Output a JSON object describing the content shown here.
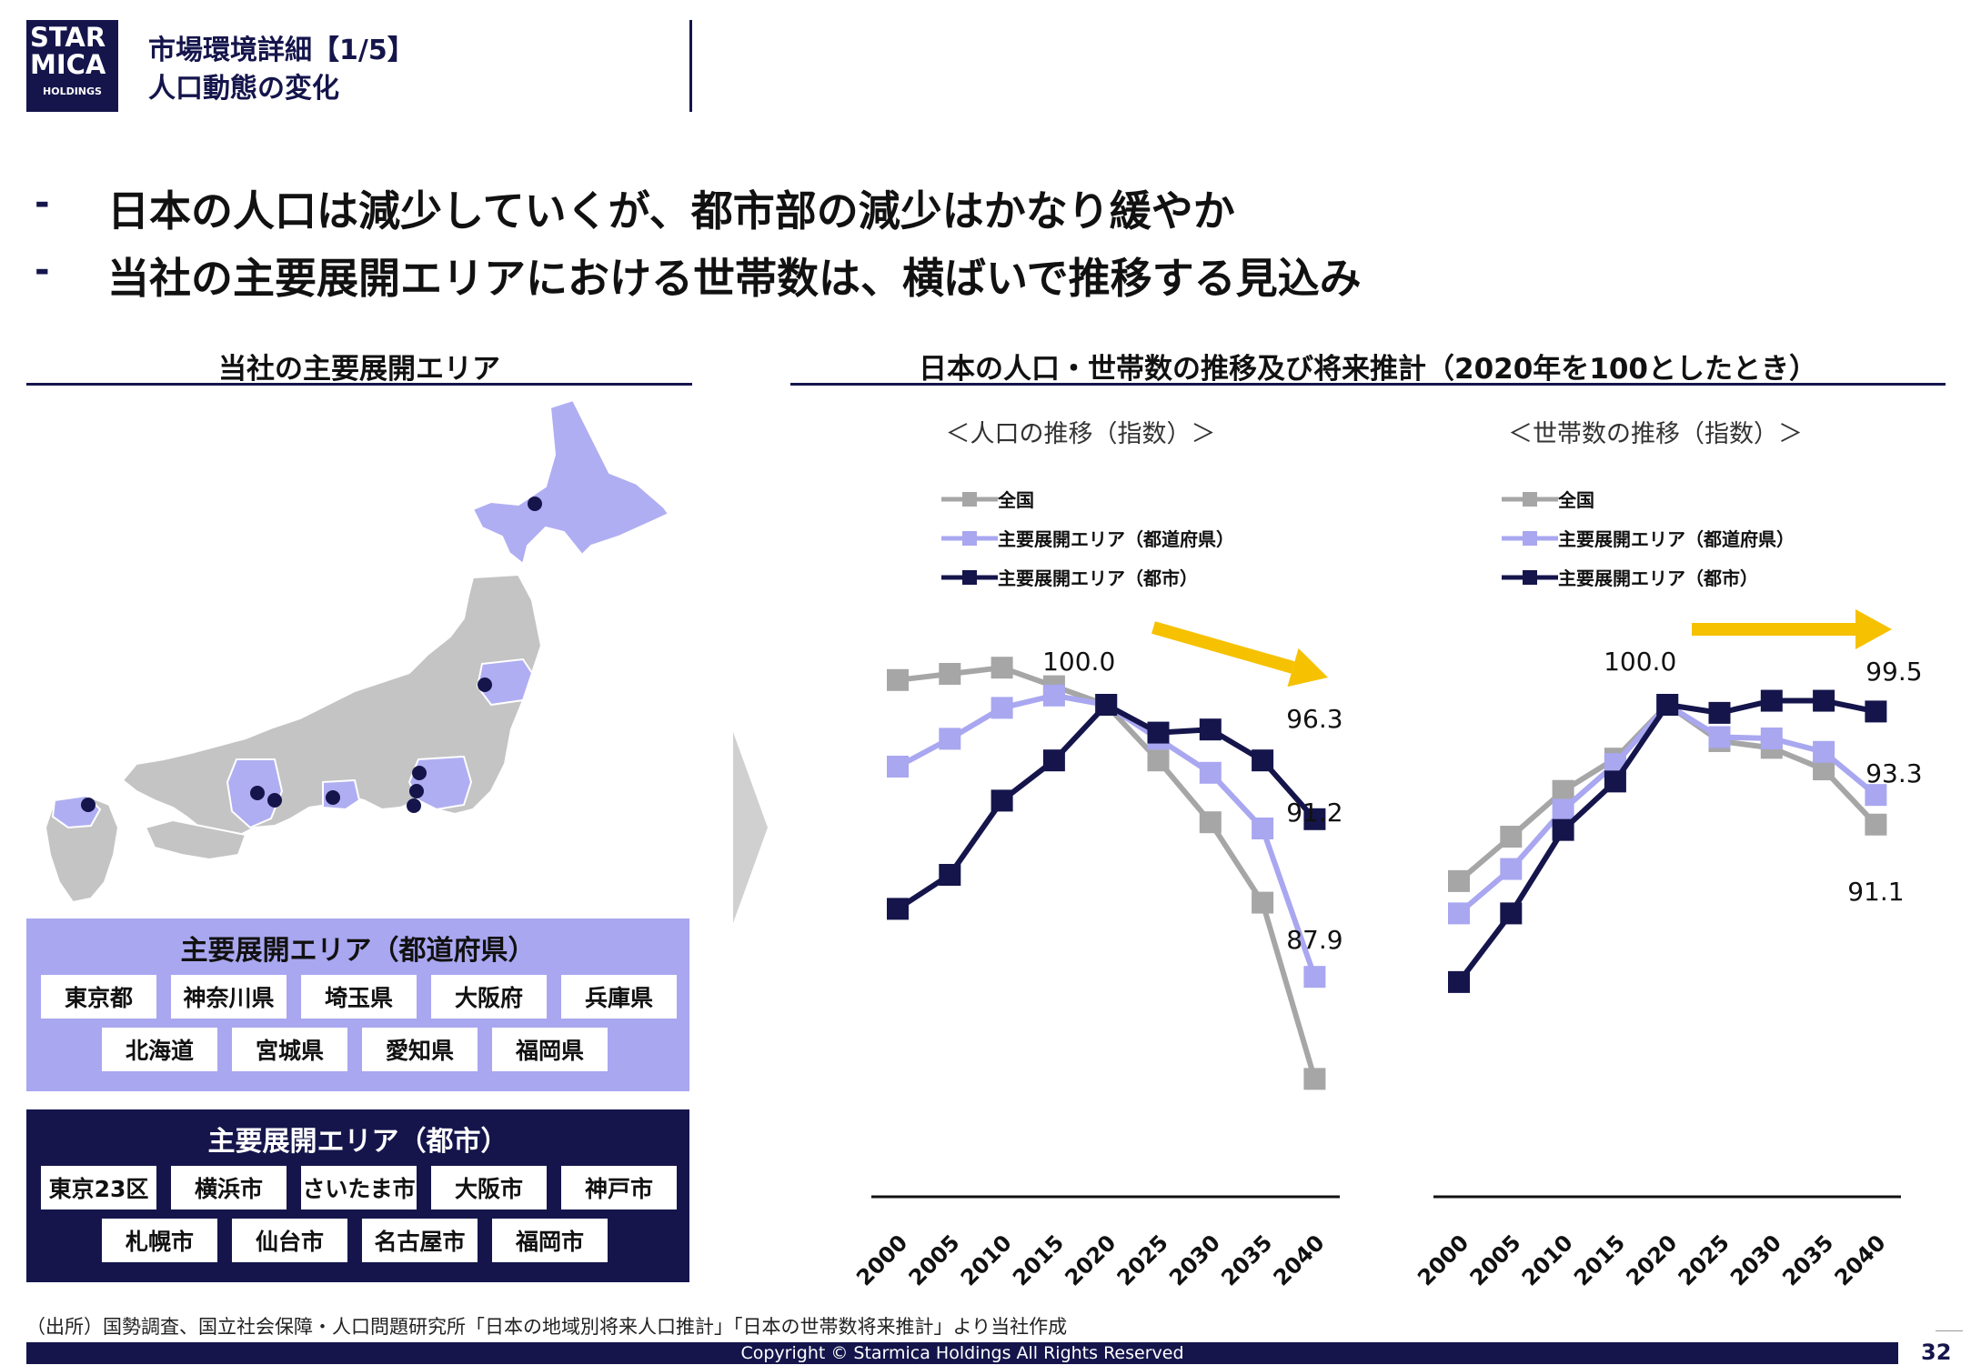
{
  "header": {
    "logo_line1": "STAR",
    "logo_line2": "MICA",
    "logo_line3": "HOLDINGS",
    "title": "市場環境詳細【1/5】",
    "subtitle": "人口動態の変化"
  },
  "bullets": [
    "日本の人口は減少していくが、都市部の減少はかなり緩やか",
    "当社の主要展開エリアにおける世帯数は、横ばいで推移する見込み"
  ],
  "bullet_marker": "-",
  "left_section": {
    "title": "当社の主要展開エリア",
    "prefecture_panel": {
      "title": "主要展開エリア（都道府県）",
      "items": [
        "東京都",
        "神奈川県",
        "埼玉県",
        "大阪府",
        "兵庫県",
        "北海道",
        "宮城県",
        "愛知県",
        "福岡県"
      ]
    },
    "city_panel": {
      "title": "主要展開エリア（都市）",
      "items": [
        "東京23区",
        "横浜市",
        "さいたま市",
        "大阪市",
        "神戸市",
        "札幌市",
        "仙台市",
        "名古屋市",
        "福岡市"
      ]
    }
  },
  "right_section": {
    "title": "日本の人口・世帯数の推移及び将来推計（2020年を100としたとき）"
  },
  "colors": {
    "navy": "#15154c",
    "lavender": "#a9a7f0",
    "gray": "#a6a6a6",
    "arrow": "#f6c100",
    "map_gray": "#c4c4c4",
    "map_highlight": "#b0aef2"
  },
  "chart_data": [
    {
      "type": "line",
      "title": "＜人口の推移（指数）＞",
      "x": [
        "2000",
        "2005",
        "2010",
        "2015",
        "2020",
        "2025",
        "2030",
        "2035",
        "2040"
      ],
      "series": [
        {
          "name": "全国",
          "color": "#a6a6a6",
          "values": [
            100.8,
            101.0,
            101.2,
            100.6,
            100.0,
            98.2,
            96.2,
            93.6,
            87.9
          ]
        },
        {
          "name": "主要展開エリア（都道府県）",
          "color": "#a9a7f0",
          "values": [
            98.0,
            98.9,
            99.9,
            100.3,
            100.0,
            98.9,
            97.8,
            96.0,
            91.2
          ]
        },
        {
          "name": "主要展開エリア（都市）",
          "color": "#15154c",
          "values": [
            93.4,
            94.5,
            96.9,
            98.2,
            100.0,
            99.1,
            99.2,
            98.2,
            96.3
          ]
        }
      ],
      "annotations": [
        {
          "x": "2020",
          "text": "100.0"
        },
        {
          "x": "2040",
          "text": "96.3"
        },
        {
          "x": "2040",
          "text": "91.2"
        },
        {
          "x": "2040",
          "text": "87.9"
        }
      ],
      "trend_arrow": "down",
      "grid": false,
      "legend": "top-left"
    },
    {
      "type": "line",
      "title": "＜世帯数の推移（指数）＞",
      "x": [
        "2000",
        "2005",
        "2010",
        "2015",
        "2020",
        "2025",
        "2030",
        "2035",
        "2040"
      ],
      "series": [
        {
          "name": "全国",
          "color": "#a6a6a6",
          "values": [
            86.9,
            90.2,
            93.6,
            96.0,
            100.0,
            97.3,
            96.8,
            95.2,
            91.1
          ]
        },
        {
          "name": "主要展開エリア（都道府県）",
          "color": "#a9a7f0",
          "values": [
            84.5,
            87.8,
            92.2,
            95.6,
            100.0,
            97.6,
            97.5,
            96.5,
            93.3
          ]
        },
        {
          "name": "主要展開エリア（都市）",
          "color": "#15154c",
          "values": [
            79.4,
            84.5,
            90.7,
            94.3,
            100.0,
            99.4,
            100.3,
            100.3,
            99.5
          ]
        }
      ],
      "annotations": [
        {
          "x": "2020",
          "text": "100.0"
        },
        {
          "x": "2040",
          "text": "99.5"
        },
        {
          "x": "2040",
          "text": "93.3"
        },
        {
          "x": "2040",
          "text": "91.1"
        }
      ],
      "trend_arrow": "flat",
      "grid": false,
      "legend": "top-left"
    }
  ],
  "footer": {
    "source": "（出所）国勢調査、国立社会保障・人口問題研究所「日本の地域別将来人口推計」「日本の世帯数将来推計」より当社作成",
    "copyright": "Copyright © Starmica Holdings All Rights Reserved",
    "page_number": "32"
  }
}
